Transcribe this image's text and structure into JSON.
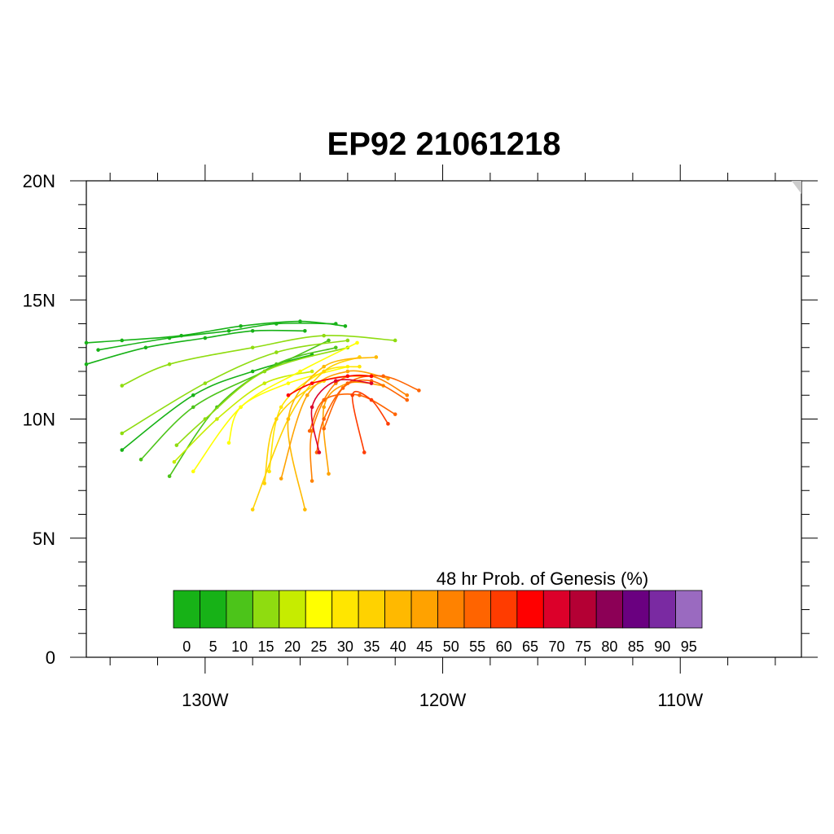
{
  "title": "EP92 21061218",
  "chart_data": {
    "type": "line",
    "title": "EP92 21061218",
    "xlim": [
      -135,
      -104.9
    ],
    "ylim": [
      0,
      20
    ],
    "x_ticks": [
      {
        "value": -130,
        "label": "130W"
      },
      {
        "value": -120,
        "label": "120W"
      },
      {
        "value": -110,
        "label": "110W"
      }
    ],
    "y_ticks": [
      {
        "value": 0,
        "label": "0"
      },
      {
        "value": 5,
        "label": "5N"
      },
      {
        "value": 10,
        "label": "10N"
      },
      {
        "value": 15,
        "label": "15N"
      },
      {
        "value": 20,
        "label": "20N"
      }
    ],
    "grid": false,
    "colorbar": {
      "title": "48 hr Prob. of Genesis (%)",
      "labels": [
        "0",
        "5",
        "10",
        "15",
        "20",
        "25",
        "30",
        "35",
        "40",
        "45",
        "50",
        "55",
        "60",
        "65",
        "70",
        "75",
        "80",
        "85",
        "90",
        "95"
      ],
      "colors": [
        "#17b217",
        "#17b217",
        "#4cc41a",
        "#8fdc10",
        "#c6ec00",
        "#ffff00",
        "#ffe600",
        "#ffd200",
        "#ffb900",
        "#ffa200",
        "#ff8200",
        "#ff6400",
        "#ff3c00",
        "#ff0000",
        "#dc002a",
        "#b40034",
        "#8c0056",
        "#6a0080",
        "#7a2aa2",
        "#9a6ac0"
      ]
    },
    "series": [
      {
        "prob": 5,
        "x": [
          -124.1,
          -126.0,
          -128.5,
          -131.0,
          -133.5,
          -135.0
        ],
        "y": [
          13.9,
          14.1,
          13.9,
          13.5,
          13.3,
          13.2
        ]
      },
      {
        "prob": 5,
        "x": [
          -124.5,
          -127.0,
          -129.0,
          -131.5,
          -134.5
        ],
        "y": [
          14.0,
          14.0,
          13.7,
          13.4,
          12.9
        ]
      },
      {
        "prob": 5,
        "x": [
          -125.8,
          -128.0,
          -130.0,
          -132.5,
          -135.0
        ],
        "y": [
          13.7,
          13.7,
          13.4,
          13.0,
          12.3
        ]
      },
      {
        "prob": 5,
        "x": [
          -125.5,
          -128.0,
          -130.5,
          -133.5
        ],
        "y": [
          12.7,
          12.0,
          11.0,
          8.7
        ]
      },
      {
        "prob": 10,
        "x": [
          -124.5,
          -127.0,
          -129.5,
          -131.5
        ],
        "y": [
          13.0,
          12.3,
          10.5,
          7.6
        ]
      },
      {
        "prob": 10,
        "x": [
          -124.8,
          -127.5,
          -130.5,
          -132.7
        ],
        "y": [
          13.3,
          12.0,
          10.5,
          8.3
        ]
      },
      {
        "prob": 15,
        "x": [
          -122.0,
          -125.0,
          -128.0,
          -131.5,
          -133.5
        ],
        "y": [
          13.3,
          13.5,
          13.0,
          12.3,
          11.4
        ]
      },
      {
        "prob": 15,
        "x": [
          -124.0,
          -127.0,
          -130.0,
          -133.5
        ],
        "y": [
          13.3,
          12.8,
          11.5,
          9.4
        ]
      },
      {
        "prob": 15,
        "x": [
          -124.0,
          -127.5,
          -130.0,
          -131.2
        ],
        "y": [
          13.0,
          12.0,
          10.0,
          8.9
        ]
      },
      {
        "prob": 20,
        "x": [
          -125.5,
          -127.5,
          -129.5,
          -131.3
        ],
        "y": [
          12.0,
          11.5,
          10.0,
          8.2
        ]
      },
      {
        "prob": 25,
        "x": [
          -123.6,
          -126.0,
          -128.5,
          -130.5
        ],
        "y": [
          13.2,
          12.0,
          10.5,
          7.8
        ]
      },
      {
        "prob": 25,
        "x": [
          -124.0,
          -126.5,
          -128.5,
          -129.0
        ],
        "y": [
          12.2,
          11.5,
          10.5,
          9.0
        ]
      },
      {
        "prob": 30,
        "x": [
          -123.5,
          -125.0,
          -126.8,
          -127.3
        ],
        "y": [
          12.2,
          12.0,
          10.5,
          7.8
        ]
      },
      {
        "prob": 35,
        "x": [
          -123.0,
          -125.0,
          -127.0,
          -127.5
        ],
        "y": [
          11.8,
          11.6,
          10.0,
          7.3
        ]
      },
      {
        "prob": 35,
        "x": [
          -123.5,
          -125.0,
          -126.5,
          -128.0
        ],
        "y": [
          12.6,
          12.0,
          10.0,
          6.2
        ]
      },
      {
        "prob": 40,
        "x": [
          -122.8,
          -125.0,
          -126.5,
          -125.8
        ],
        "y": [
          12.6,
          12.2,
          10.0,
          6.2
        ]
      },
      {
        "prob": 45,
        "x": [
          -122.3,
          -124.0,
          -125.7,
          -126.8
        ],
        "y": [
          11.7,
          12.0,
          11.0,
          7.5
        ]
      },
      {
        "prob": 45,
        "x": [
          -122.5,
          -124.0,
          -125.0,
          -124.8
        ],
        "y": [
          11.4,
          11.5,
          10.5,
          7.7
        ]
      },
      {
        "prob": 50,
        "x": [
          -121.5,
          -123.0,
          -124.5,
          -125.5,
          -125.5
        ],
        "y": [
          11.0,
          11.8,
          11.5,
          9.5,
          7.4
        ]
      },
      {
        "prob": 55,
        "x": [
          -121.0,
          -122.5,
          -124.0,
          -125.0,
          -125.3
        ],
        "y": [
          11.2,
          11.8,
          11.5,
          10.0,
          8.6
        ]
      },
      {
        "prob": 55,
        "x": [
          -121.5,
          -123.0,
          -124.2,
          -125.0
        ],
        "y": [
          10.8,
          11.6,
          11.3,
          9.6
        ]
      },
      {
        "prob": 55,
        "x": [
          -122.0,
          -123.5,
          -125.0,
          -125.6
        ],
        "y": [
          10.2,
          11.0,
          10.8,
          9.5
        ]
      },
      {
        "prob": 60,
        "x": [
          -122.3,
          -123.0,
          -123.8,
          -123.3
        ],
        "y": [
          9.8,
          10.8,
          11.0,
          8.6
        ]
      },
      {
        "prob": 65,
        "x": [
          -123.0,
          -124.0,
          -125.5,
          -126.5
        ],
        "y": [
          11.8,
          11.8,
          11.5,
          11.0
        ]
      },
      {
        "prob": 70,
        "x": [
          -123.0,
          -124.5,
          -125.5,
          -125.2
        ],
        "y": [
          11.5,
          11.6,
          10.5,
          8.6
        ]
      }
    ]
  }
}
